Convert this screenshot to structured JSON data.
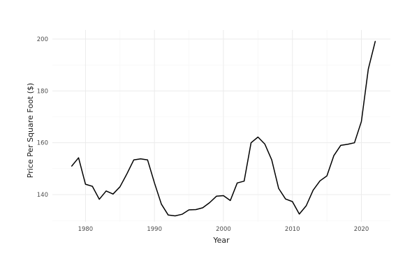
{
  "chart_data": {
    "type": "line",
    "title": "",
    "xlabel": "Year",
    "ylabel": "Price Per Square Foot ($)",
    "xlim": [
      1975.2,
      2024.2
    ],
    "ylim": [
      129.5,
      203.5
    ],
    "x_ticks": [
      1980,
      1990,
      2000,
      2010,
      2020
    ],
    "y_ticks": [
      140,
      160,
      180,
      200
    ],
    "grid": true,
    "legend": "none",
    "line_color": "#000000",
    "x": [
      1978,
      1979,
      1980,
      1981,
      1982,
      1983,
      1984,
      1985,
      1986,
      1987,
      1988,
      1989,
      1990,
      1991,
      1992,
      1993,
      1994,
      1995,
      1996,
      1997,
      1998,
      1999,
      2000,
      2001,
      2002,
      2003,
      2004,
      2005,
      2006,
      2007,
      2008,
      2009,
      2010,
      2011,
      2012,
      2013,
      2014,
      2015,
      2016,
      2017,
      2018,
      2019,
      2020,
      2021,
      2022
    ],
    "y": [
      151,
      154.2,
      144,
      143.2,
      138.2,
      141.4,
      140.2,
      143,
      148,
      153.4,
      153.8,
      153.4,
      144.5,
      136.3,
      132.1,
      131.8,
      132.4,
      134.1,
      134.2,
      134.9,
      136.9,
      139.4,
      139.6,
      137.7,
      144.5,
      145.2,
      160,
      162.2,
      159.5,
      153.4,
      142.4,
      138.3,
      137.3,
      132.5,
      135.7,
      141.7,
      145.3,
      147.2,
      155,
      159,
      159.4,
      160,
      168.2,
      188.4,
      199.1
    ]
  },
  "labels": {
    "x_ticks": [
      "1980",
      "1990",
      "2000",
      "2010",
      "2020"
    ],
    "y_ticks": [
      "140",
      "160",
      "180",
      "200"
    ]
  }
}
